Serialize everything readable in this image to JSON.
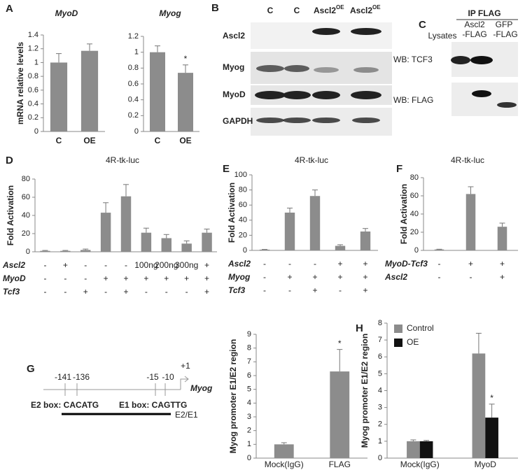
{
  "chart_data": [
    {
      "type": "bar",
      "panel": "A",
      "title": "MyoD",
      "ylabel": "mRNA relative levels",
      "categories": [
        "C",
        "OE"
      ],
      "values": [
        1.0,
        1.17
      ],
      "errors": [
        0.13,
        0.1
      ],
      "color": "#8c8c8c",
      "ylim": [
        0,
        1.4
      ],
      "yticks": [
        0,
        0.2,
        0.4,
        0.6,
        0.8,
        1,
        1.2,
        1.4
      ]
    },
    {
      "type": "bar",
      "title": "Myog",
      "categories": [
        "C",
        "OE"
      ],
      "values": [
        1.0,
        0.74
      ],
      "errors": [
        0.08,
        0.1
      ],
      "significance": [
        null,
        "*"
      ],
      "color": "#8c8c8c",
      "ylim": [
        0,
        1.2
      ],
      "yticks": [
        0,
        0.2,
        0.4,
        0.6,
        0.8,
        1,
        1.2
      ]
    },
    {
      "type": "bar",
      "panel": "D",
      "title": "4R-tk-luc",
      "ylabel": "Fold Activation",
      "values": [
        1,
        1,
        2,
        43,
        61,
        21,
        15,
        9,
        21
      ],
      "errors": [
        0.5,
        0.5,
        1,
        11,
        13,
        5,
        4,
        3,
        4
      ],
      "color": "#8c8c8c",
      "ylim": [
        0,
        80
      ],
      "yticks": [
        0,
        20,
        40,
        60,
        80
      ],
      "conditions": [
        {
          "name": "Ascl2",
          "values": [
            "-",
            "+",
            "-",
            "-",
            "-",
            "100ng",
            "200ng",
            "300ng",
            "+"
          ]
        },
        {
          "name": "MyoD",
          "values": [
            "-",
            "-",
            "-",
            "+",
            "+",
            "+",
            "+",
            "+",
            "+"
          ]
        },
        {
          "name": "Tcf3",
          "values": [
            "-",
            "-",
            "+",
            "-",
            "+",
            "-",
            "-",
            "-",
            "+"
          ]
        }
      ]
    },
    {
      "type": "bar",
      "panel": "E",
      "title": "4R-tk-luc",
      "ylabel": "Fold Activation",
      "values": [
        1,
        50,
        72,
        6,
        25
      ],
      "errors": [
        0.3,
        6,
        8,
        1.5,
        4
      ],
      "color": "#8c8c8c",
      "ylim": [
        0,
        100
      ],
      "yticks": [
        0,
        20,
        40,
        60,
        80,
        100
      ],
      "conditions": [
        {
          "name": "Ascl2",
          "values": [
            "-",
            "-",
            "-",
            "+",
            "+"
          ]
        },
        {
          "name": "Myog",
          "values": [
            "-",
            "+",
            "+",
            "+",
            "+"
          ]
        },
        {
          "name": "Tcf3",
          "values": [
            "-",
            "-",
            "+",
            "-",
            "+"
          ]
        }
      ]
    },
    {
      "type": "bar",
      "panel": "F",
      "title": "4R-tk-luc",
      "ylabel": "Fold Activation",
      "values": [
        1,
        62,
        26
      ],
      "errors": [
        0.3,
        8,
        4
      ],
      "color": "#8c8c8c",
      "ylim": [
        0,
        80
      ],
      "yticks": [
        0,
        20,
        40,
        60,
        80
      ],
      "conditions": [
        {
          "name": "MyoD-Tcf3",
          "values": [
            "-",
            "+",
            "+"
          ]
        },
        {
          "name": "Ascl2",
          "values": [
            "-",
            "-",
            "+"
          ]
        }
      ]
    },
    {
      "type": "bar",
      "ylabel": "Myog promoter E1/E2 region",
      "categories": [
        "Mock(IgG)",
        "FLAG"
      ],
      "values": [
        1.0,
        6.3
      ],
      "errors": [
        0.12,
        1.6
      ],
      "significance": [
        null,
        "*"
      ],
      "color": "#8c8c8c",
      "ylim": [
        0,
        9
      ],
      "yticks": [
        0,
        1,
        2,
        3,
        4,
        5,
        6,
        7,
        8,
        9
      ]
    },
    {
      "type": "bar",
      "panel": "H",
      "ylabel": "Myog promoter E1/E2 region",
      "categories": [
        "Mock(IgG)",
        "MyoD"
      ],
      "legend": "top-left",
      "ylim": [
        0,
        8
      ],
      "yticks": [
        0,
        1,
        2,
        3,
        4,
        5,
        6,
        7,
        8
      ],
      "series": [
        {
          "name": "Control",
          "color": "#8c8c8c",
          "values": [
            1.0,
            6.2
          ],
          "errors": [
            0.08,
            1.2
          ],
          "significance": [
            null,
            null
          ]
        },
        {
          "name": "OE",
          "color": "#111111",
          "values": [
            1.0,
            2.4
          ],
          "errors": [
            0.05,
            0.8
          ],
          "significance": [
            null,
            "*"
          ]
        }
      ]
    }
  ],
  "blot_b": {
    "panel": "B",
    "lanes": [
      {
        "name": "C"
      },
      {
        "name": "C"
      },
      {
        "name": "Ascl2",
        "sup": "OE"
      },
      {
        "name": "Ascl2",
        "sup": "OE"
      }
    ],
    "rows": [
      "Ascl2",
      "Myog",
      "MyoD",
      "GAPDH"
    ]
  },
  "blot_c": {
    "panel": "C",
    "header": "IP FLAG",
    "lanes": [
      [
        "Lysates"
      ],
      [
        "Ascl2",
        "-FLAG"
      ],
      [
        "GFP",
        "-FLAG"
      ]
    ],
    "rows": [
      "WB: TCF3",
      "WB: FLAG"
    ]
  },
  "diagram_g": {
    "panel": "G",
    "positions": [
      "-141",
      "-136",
      "-15",
      "-10",
      "+1"
    ],
    "gene": "Myog",
    "e2_box": "E2 box: CACATG",
    "e1_box": "E1 box: CAGTTG",
    "region": "E2/E1"
  }
}
